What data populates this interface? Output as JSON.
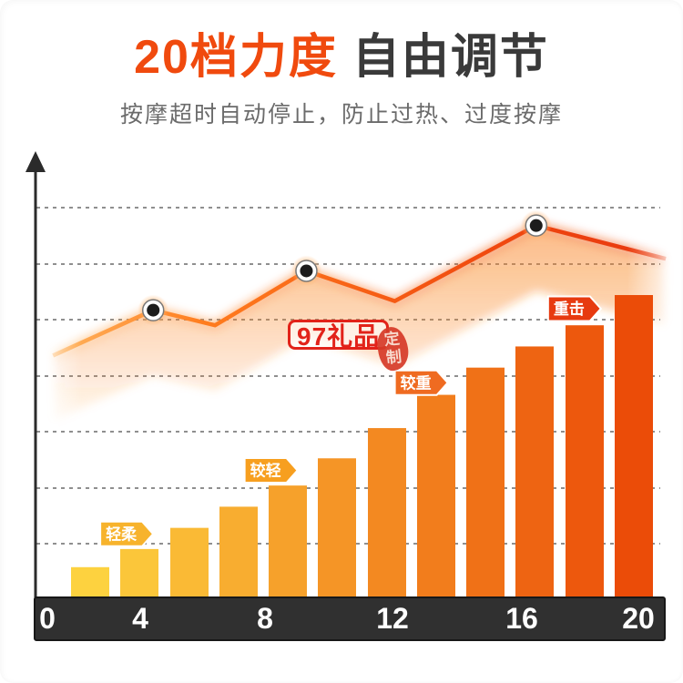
{
  "header": {
    "title_accent": "20档力度",
    "title_rest": "自由调节",
    "subtitle": "按摩超时自动停止，防止过热、过度按摩",
    "accent_color": "#f04a0e",
    "title_color": "#3a3a3a"
  },
  "watermarks": {
    "box_label": "97礼品",
    "stamp_top": "定",
    "stamp_bottom": "制",
    "color": "#e2231a"
  },
  "chart_data": {
    "type": "bar",
    "title": "20档力度 自由调节",
    "xlabel": "",
    "ylabel": "",
    "x_ticks": [
      "0",
      "4",
      "8",
      "12",
      "16",
      "20"
    ],
    "x_range": [
      0,
      20
    ],
    "grid": {
      "count": 7,
      "style": "dashed",
      "color": "#8f8f8f"
    },
    "axis_band_color": "#303030",
    "bars": {
      "levels": [
        1.3,
        2.9,
        4.6,
        6.2,
        7.7,
        9.4,
        11.2,
        12.9,
        14.6,
        16.3,
        18.0,
        19.8
      ],
      "heights_pct": [
        10,
        16,
        23,
        30,
        37,
        46,
        56,
        67,
        76,
        83,
        90,
        100
      ],
      "color_start": "#fdd23f",
      "color_end": "#eb4c08"
    },
    "line_overlay": {
      "type": "line",
      "points": [
        {
          "level": 0.1,
          "height_pct": 80
        },
        {
          "level": 3.5,
          "height_pct": 95
        },
        {
          "level": 5.6,
          "height_pct": 90
        },
        {
          "level": 8.7,
          "height_pct": 108
        },
        {
          "level": 11.7,
          "height_pct": 98
        },
        {
          "level": 16.5,
          "height_pct": 123
        },
        {
          "level": 20.9,
          "height_pct": 112
        }
      ],
      "dot_point_indices": [
        1,
        3,
        5
      ]
    },
    "intensity_tags": [
      {
        "label": "轻柔",
        "level": 2.6,
        "height_pct": 21,
        "color": "#f7b32c"
      },
      {
        "label": "较轻",
        "level": 7.5,
        "height_pct": 42,
        "color": "#f79f1f"
      },
      {
        "label": "较重",
        "level": 12.6,
        "height_pct": 71,
        "color": "#ef6b21"
      },
      {
        "label": "重击",
        "level": 17.8,
        "height_pct": 95.5,
        "color": "#e73a10"
      }
    ]
  }
}
